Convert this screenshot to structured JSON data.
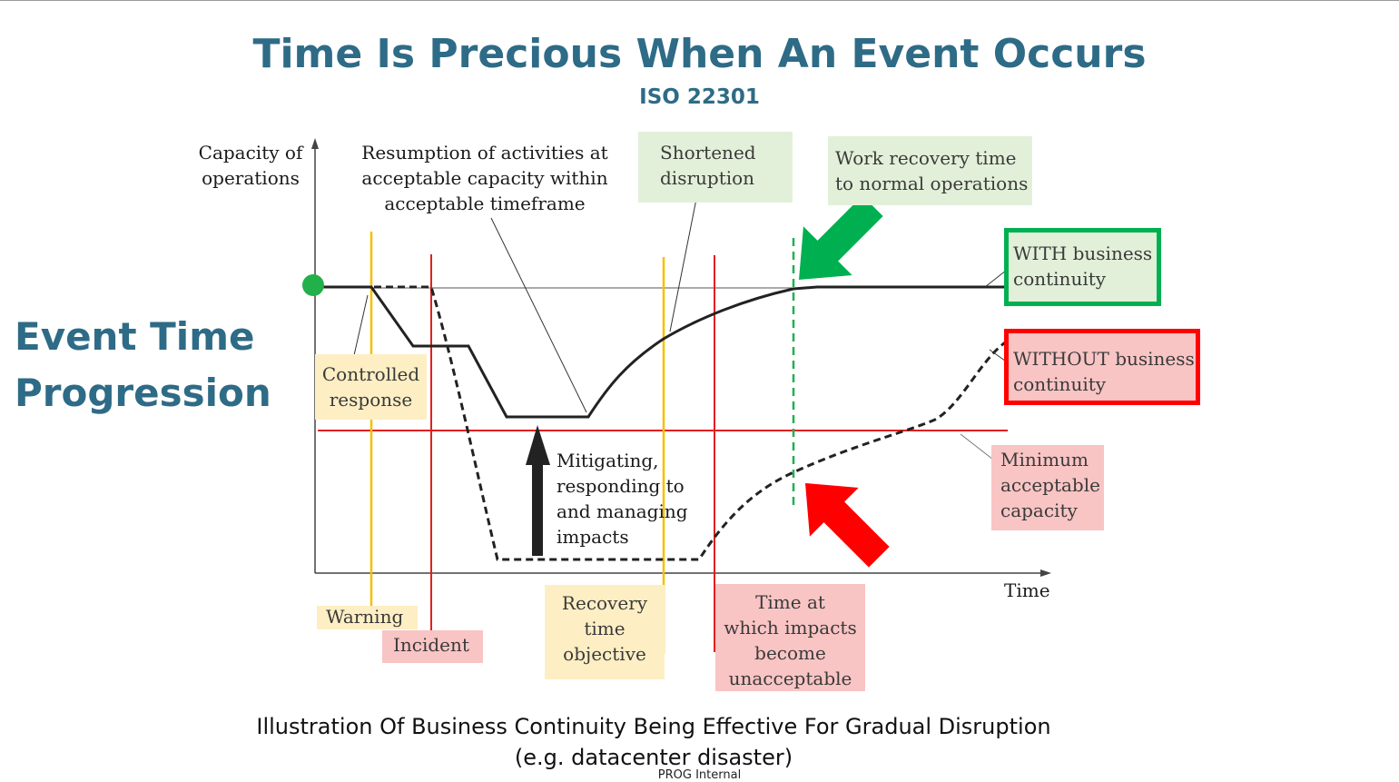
{
  "title": "Time Is Precious When An Event Occurs",
  "subtitle": "ISO 22301",
  "side_label": [
    "Event Time",
    "Progression"
  ],
  "caption": [
    "Illustration Of Business Continuity Being Effective For Gradual Disruption",
    "(e.g. datacenter disaster)"
  ],
  "footer": "PROG Internal",
  "diagram": {
    "y_axis_label": [
      "Capacity of",
      "operations"
    ],
    "x_axis_label": "Time",
    "resumption_note": [
      "Resumption of activities at",
      "acceptable capacity within",
      "acceptable timeframe"
    ],
    "shortened": [
      "Shortened",
      "disruption"
    ],
    "work_recovery": [
      "Work recovery time",
      "to normal operations"
    ],
    "with_bc": [
      "WITH business",
      "continuity"
    ],
    "without_bc": [
      "WITHOUT business",
      "continuity"
    ],
    "controlled": [
      "Controlled",
      "response"
    ],
    "mitigating": [
      "Mitigating,",
      "responding to",
      "and managing",
      "impacts"
    ],
    "minimum": [
      "Minimum",
      "acceptable",
      "capacity"
    ],
    "warning": "Warning",
    "incident": "Incident",
    "rto": [
      "Recovery",
      "time",
      "objective"
    ],
    "unacceptable": [
      "Time at",
      "which impacts",
      "become",
      "unacceptable"
    ]
  },
  "colors": {
    "title": "#2e6b86",
    "yellow_line": "#f5c000",
    "red_line": "#e02020",
    "green_line": "#22b050",
    "green_arrow": "#00b050",
    "red_arrow": "#ff0000"
  }
}
